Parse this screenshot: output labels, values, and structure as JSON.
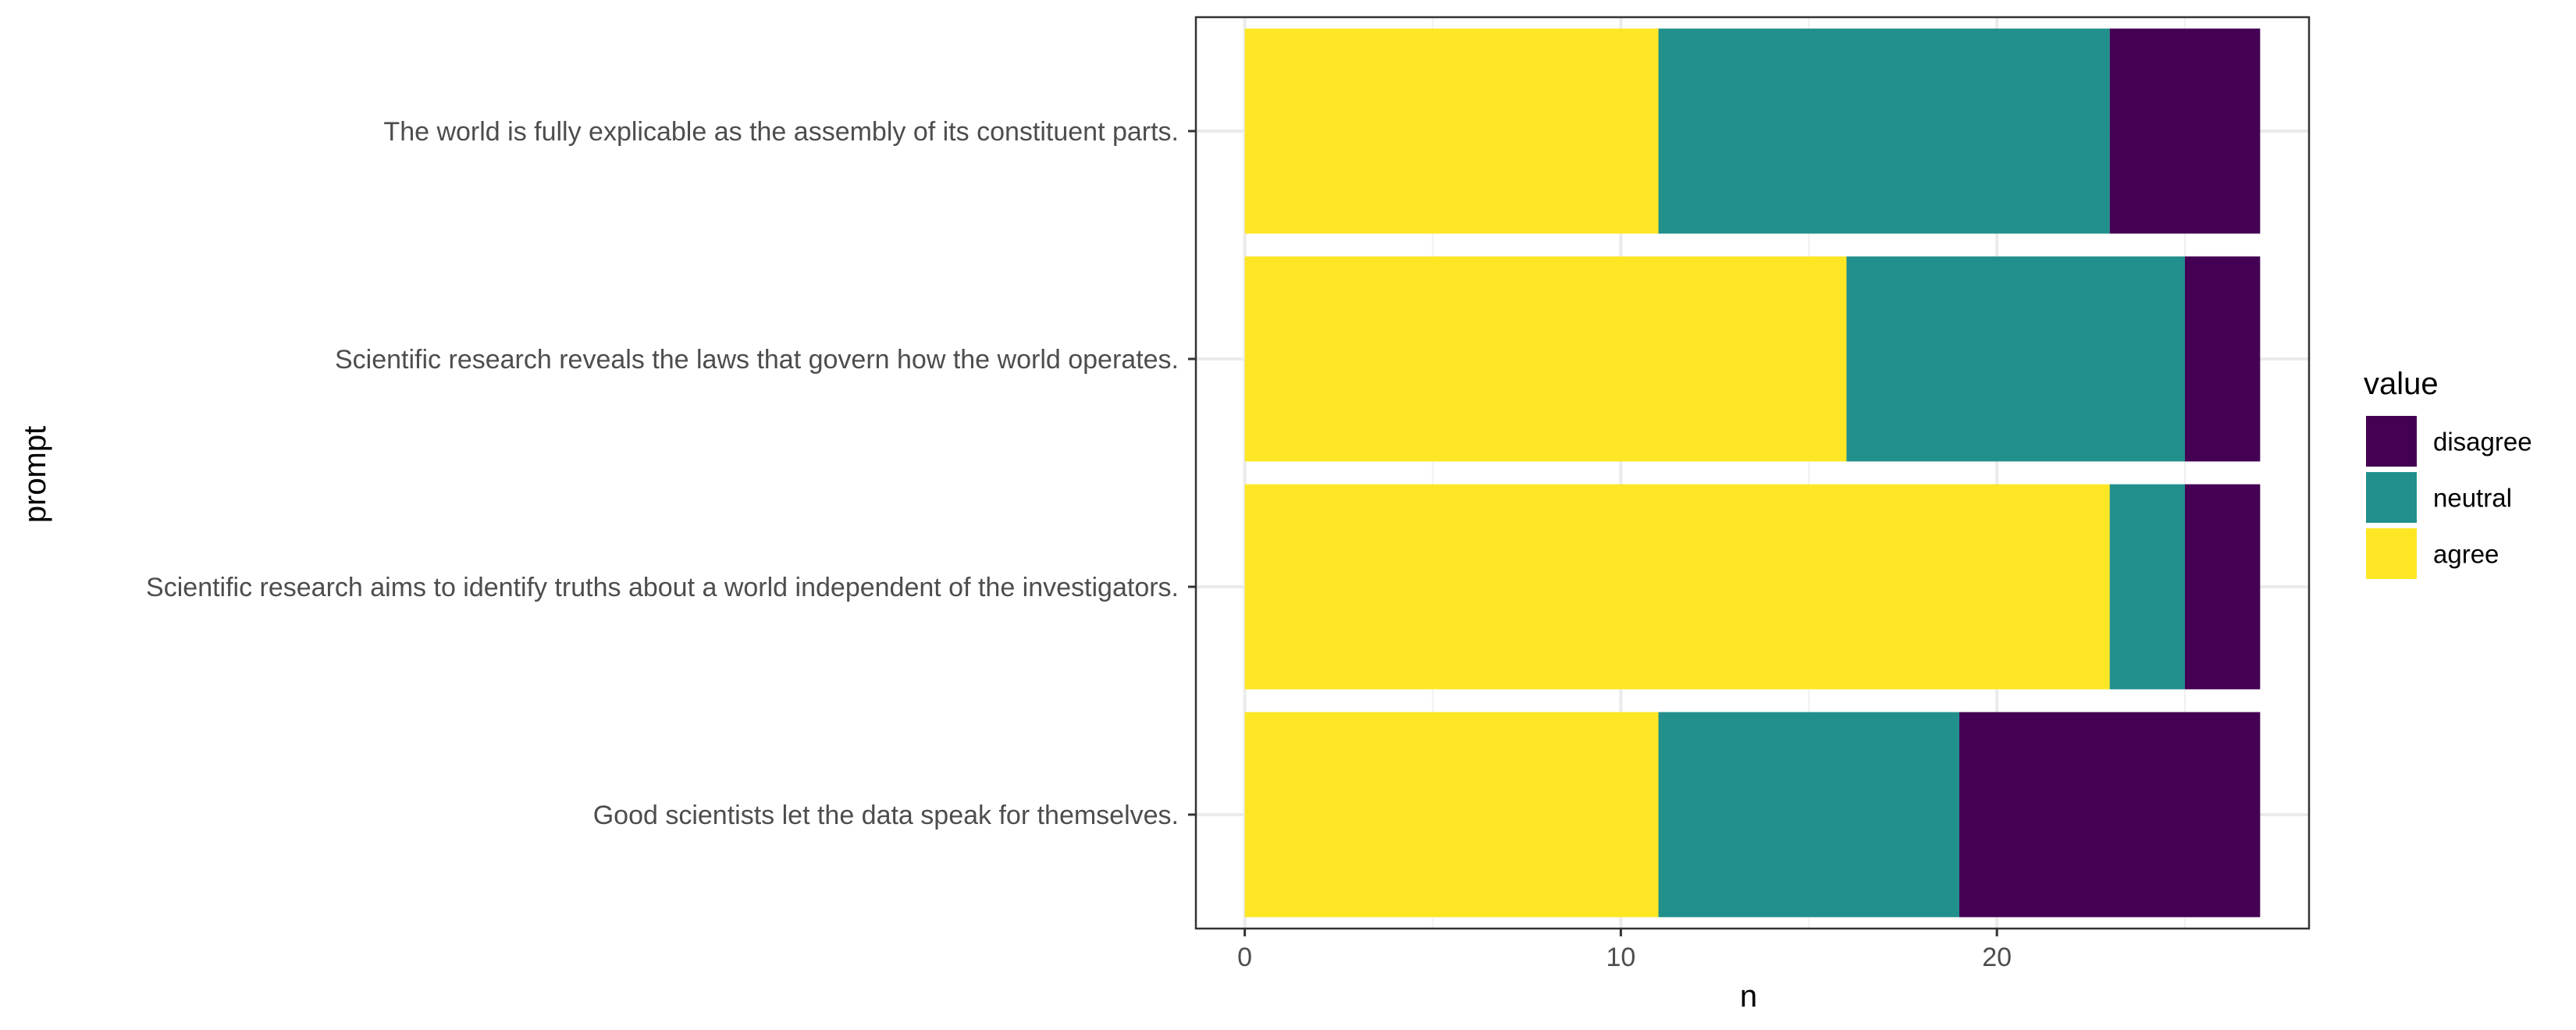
{
  "chart_data": {
    "type": "bar",
    "orientation": "horizontal",
    "stacked": true,
    "xlabel": "n",
    "ylabel": "prompt",
    "xlim": [
      -1.3,
      28.3
    ],
    "x_ticks": [
      0,
      10,
      20
    ],
    "grid": true,
    "legend_position": "right",
    "categories": [
      "The world is fully explicable as the assembly of its constituent parts.",
      "Scientific research reveals the laws that govern how the world operates.",
      "Scientific research aims to identify truths about a world independent of the investigators.",
      "Good scientists let the data speak for themselves."
    ],
    "series": [
      {
        "name": "agree",
        "color": "#FDE725",
        "values": [
          11,
          16,
          23,
          11
        ]
      },
      {
        "name": "neutral",
        "color": "#21908C",
        "values": [
          12,
          9,
          2,
          8
        ]
      },
      {
        "name": "disagree",
        "color": "#440154",
        "values": [
          4,
          2,
          2,
          8
        ]
      }
    ],
    "legend": {
      "title": "value",
      "items": [
        {
          "label": "disagree",
          "color": "#440154"
        },
        {
          "label": "neutral",
          "color": "#21908C"
        },
        {
          "label": "agree",
          "color": "#FDE725"
        }
      ]
    }
  }
}
